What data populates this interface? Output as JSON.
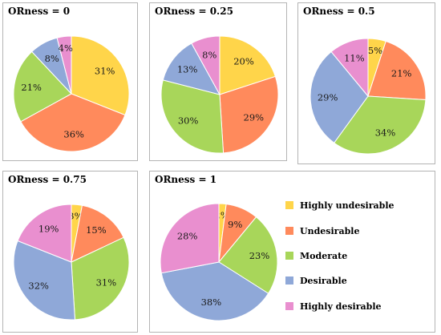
{
  "chart_data": [
    {
      "type": "pie",
      "title": "ORness = 0",
      "categories": [
        "Highly undesirable",
        "Undesirable",
        "Moderate",
        "Desirable",
        "Highly desirable"
      ],
      "values": [
        31,
        36,
        21,
        8,
        4
      ],
      "labels": [
        "31%",
        "36%",
        "21%",
        "8%",
        "4%"
      ]
    },
    {
      "type": "pie",
      "title": "ORness = 0.25",
      "categories": [
        "Highly undesirable",
        "Undesirable",
        "Moderate",
        "Desirable",
        "Highly desirable"
      ],
      "values": [
        20,
        29,
        30,
        13,
        8
      ],
      "labels": [
        "20%",
        "29%",
        "30%",
        "13%",
        "8%"
      ]
    },
    {
      "type": "pie",
      "title": "ORness = 0.5",
      "categories": [
        "Highly undesirable",
        "Undesirable",
        "Moderate",
        "Desirable",
        "Highly desirable"
      ],
      "values": [
        5,
        21,
        34,
        29,
        11
      ],
      "labels": [
        "5%",
        "21%",
        "34%",
        "29%",
        "11%"
      ]
    },
    {
      "type": "pie",
      "title": "ORness = 0.75",
      "categories": [
        "Highly undesirable",
        "Undesirable",
        "Moderate",
        "Desirable",
        "Highly desirable"
      ],
      "values": [
        3,
        15,
        31,
        32,
        19
      ],
      "labels": [
        "3%",
        "15%",
        "31%",
        "32%",
        "19%"
      ]
    },
    {
      "type": "pie",
      "title": "ORness = 1",
      "categories": [
        "Highly undesirable",
        "Undesirable",
        "Moderate",
        "Desirable",
        "Highly desirable"
      ],
      "values": [
        2,
        9,
        23,
        38,
        28
      ],
      "labels": [
        "2%",
        "9%",
        "23%",
        "38%",
        "28%"
      ]
    }
  ],
  "legend": {
    "placement": "right",
    "entries": [
      "Highly undesirable",
      "Undesirable",
      "Moderate",
      "Desirable",
      "Highly desirable"
    ]
  },
  "colors": [
    "#ffd54a",
    "#ff8a5c",
    "#a8d65a",
    "#8fa8d8",
    "#e98fcf"
  ]
}
